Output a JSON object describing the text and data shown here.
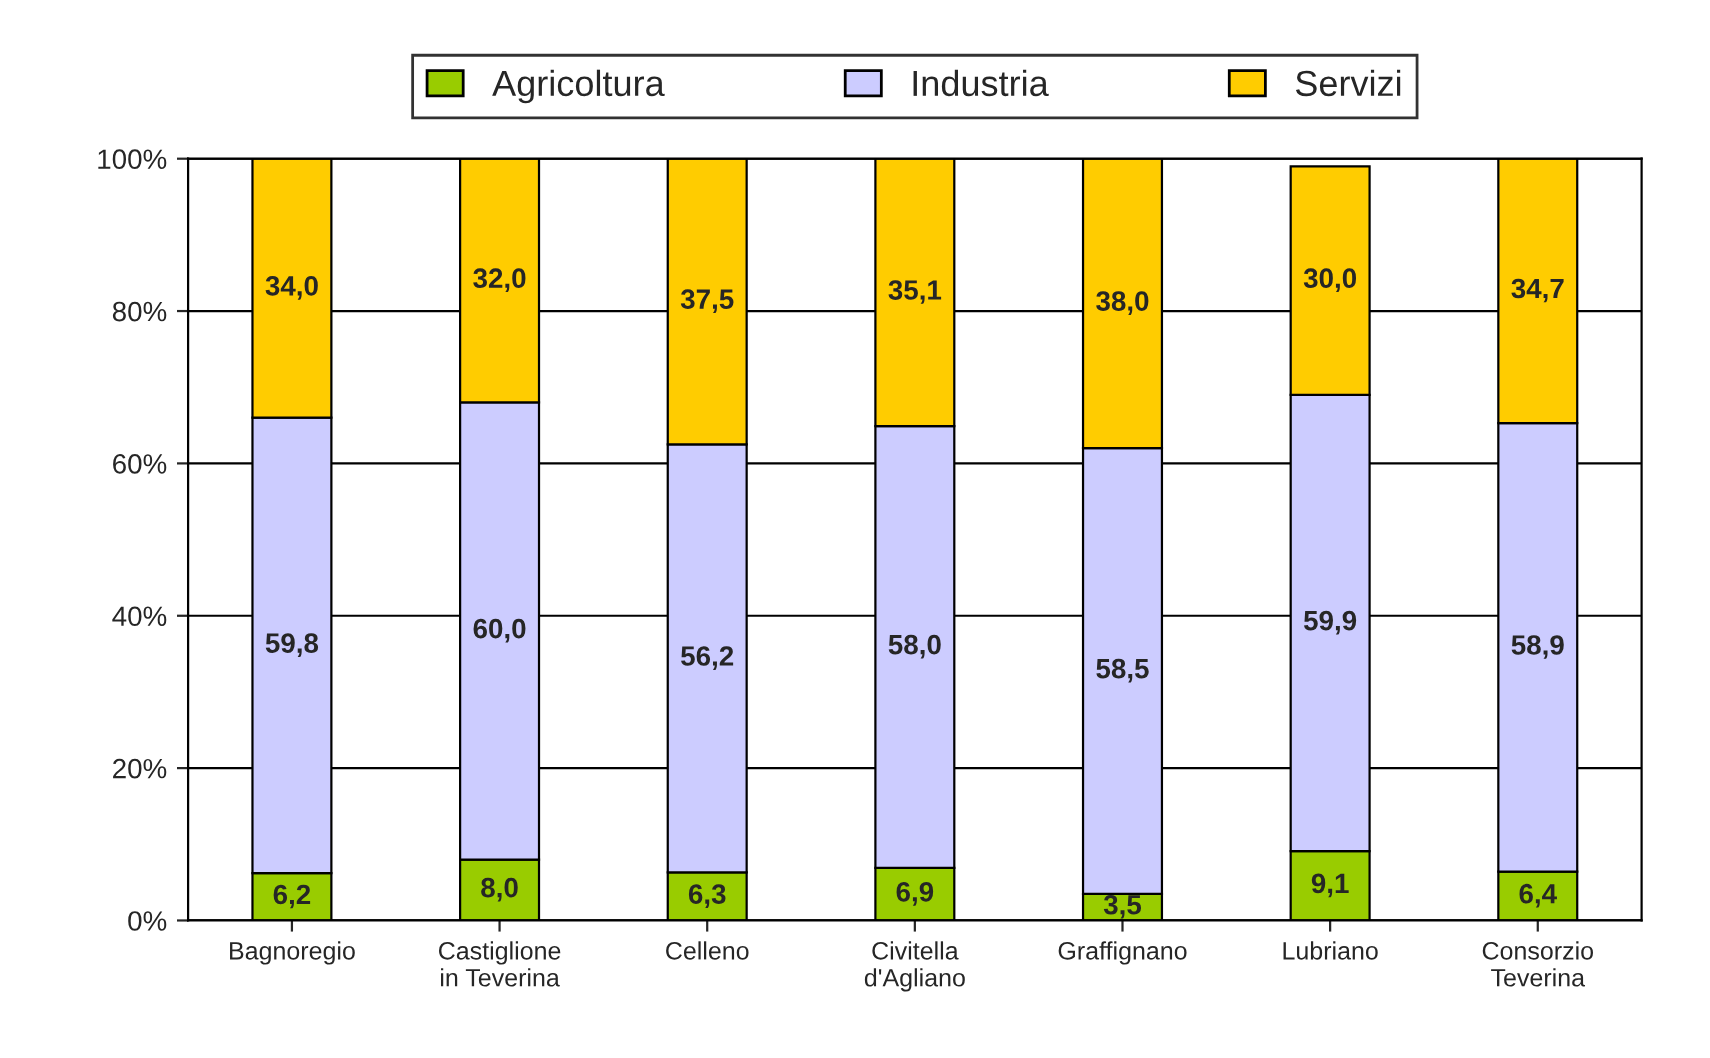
{
  "chart_data": {
    "type": "bar",
    "stacked": true,
    "categories": [
      "Bagnoregio",
      "Castiglione\nin Teverina",
      "Celleno",
      "Civitella\nd'Agliano",
      "Graffignano",
      "Lubriano",
      "Consorzio\nTeverina"
    ],
    "series": [
      {
        "name": "Agricoltura",
        "color": "#99cc00",
        "values": [
          6.2,
          8.0,
          6.3,
          6.9,
          3.5,
          9.1,
          6.4
        ],
        "value_labels": [
          "6,2",
          "8,0",
          "6,3",
          "6,9",
          "3,5",
          "9,1",
          "6,4"
        ]
      },
      {
        "name": "Industria",
        "color": "#ccccff",
        "values": [
          59.8,
          60.0,
          56.2,
          58.0,
          58.5,
          59.9,
          58.9
        ],
        "value_labels": [
          "59,8",
          "60,0",
          "56,2",
          "58,0",
          "58,5",
          "59,9",
          "58,9"
        ]
      },
      {
        "name": "Servizi",
        "color": "#ffcc00",
        "values": [
          34.0,
          32.0,
          37.5,
          35.1,
          38.0,
          30.0,
          34.7
        ],
        "value_labels": [
          "34,0",
          "32,0",
          "37,5",
          "35,1",
          "38,0",
          "30,0",
          "34,7"
        ]
      }
    ],
    "ylim": [
      0,
      100
    ],
    "yticks": [
      {
        "value": 0,
        "label": "0%"
      },
      {
        "value": 20,
        "label": "20%"
      },
      {
        "value": 40,
        "label": "40%"
      },
      {
        "value": 60,
        "label": "60%"
      },
      {
        "value": 80,
        "label": "80%"
      },
      {
        "value": 100,
        "label": "100%"
      }
    ],
    "grid": "y",
    "legend": "top"
  }
}
